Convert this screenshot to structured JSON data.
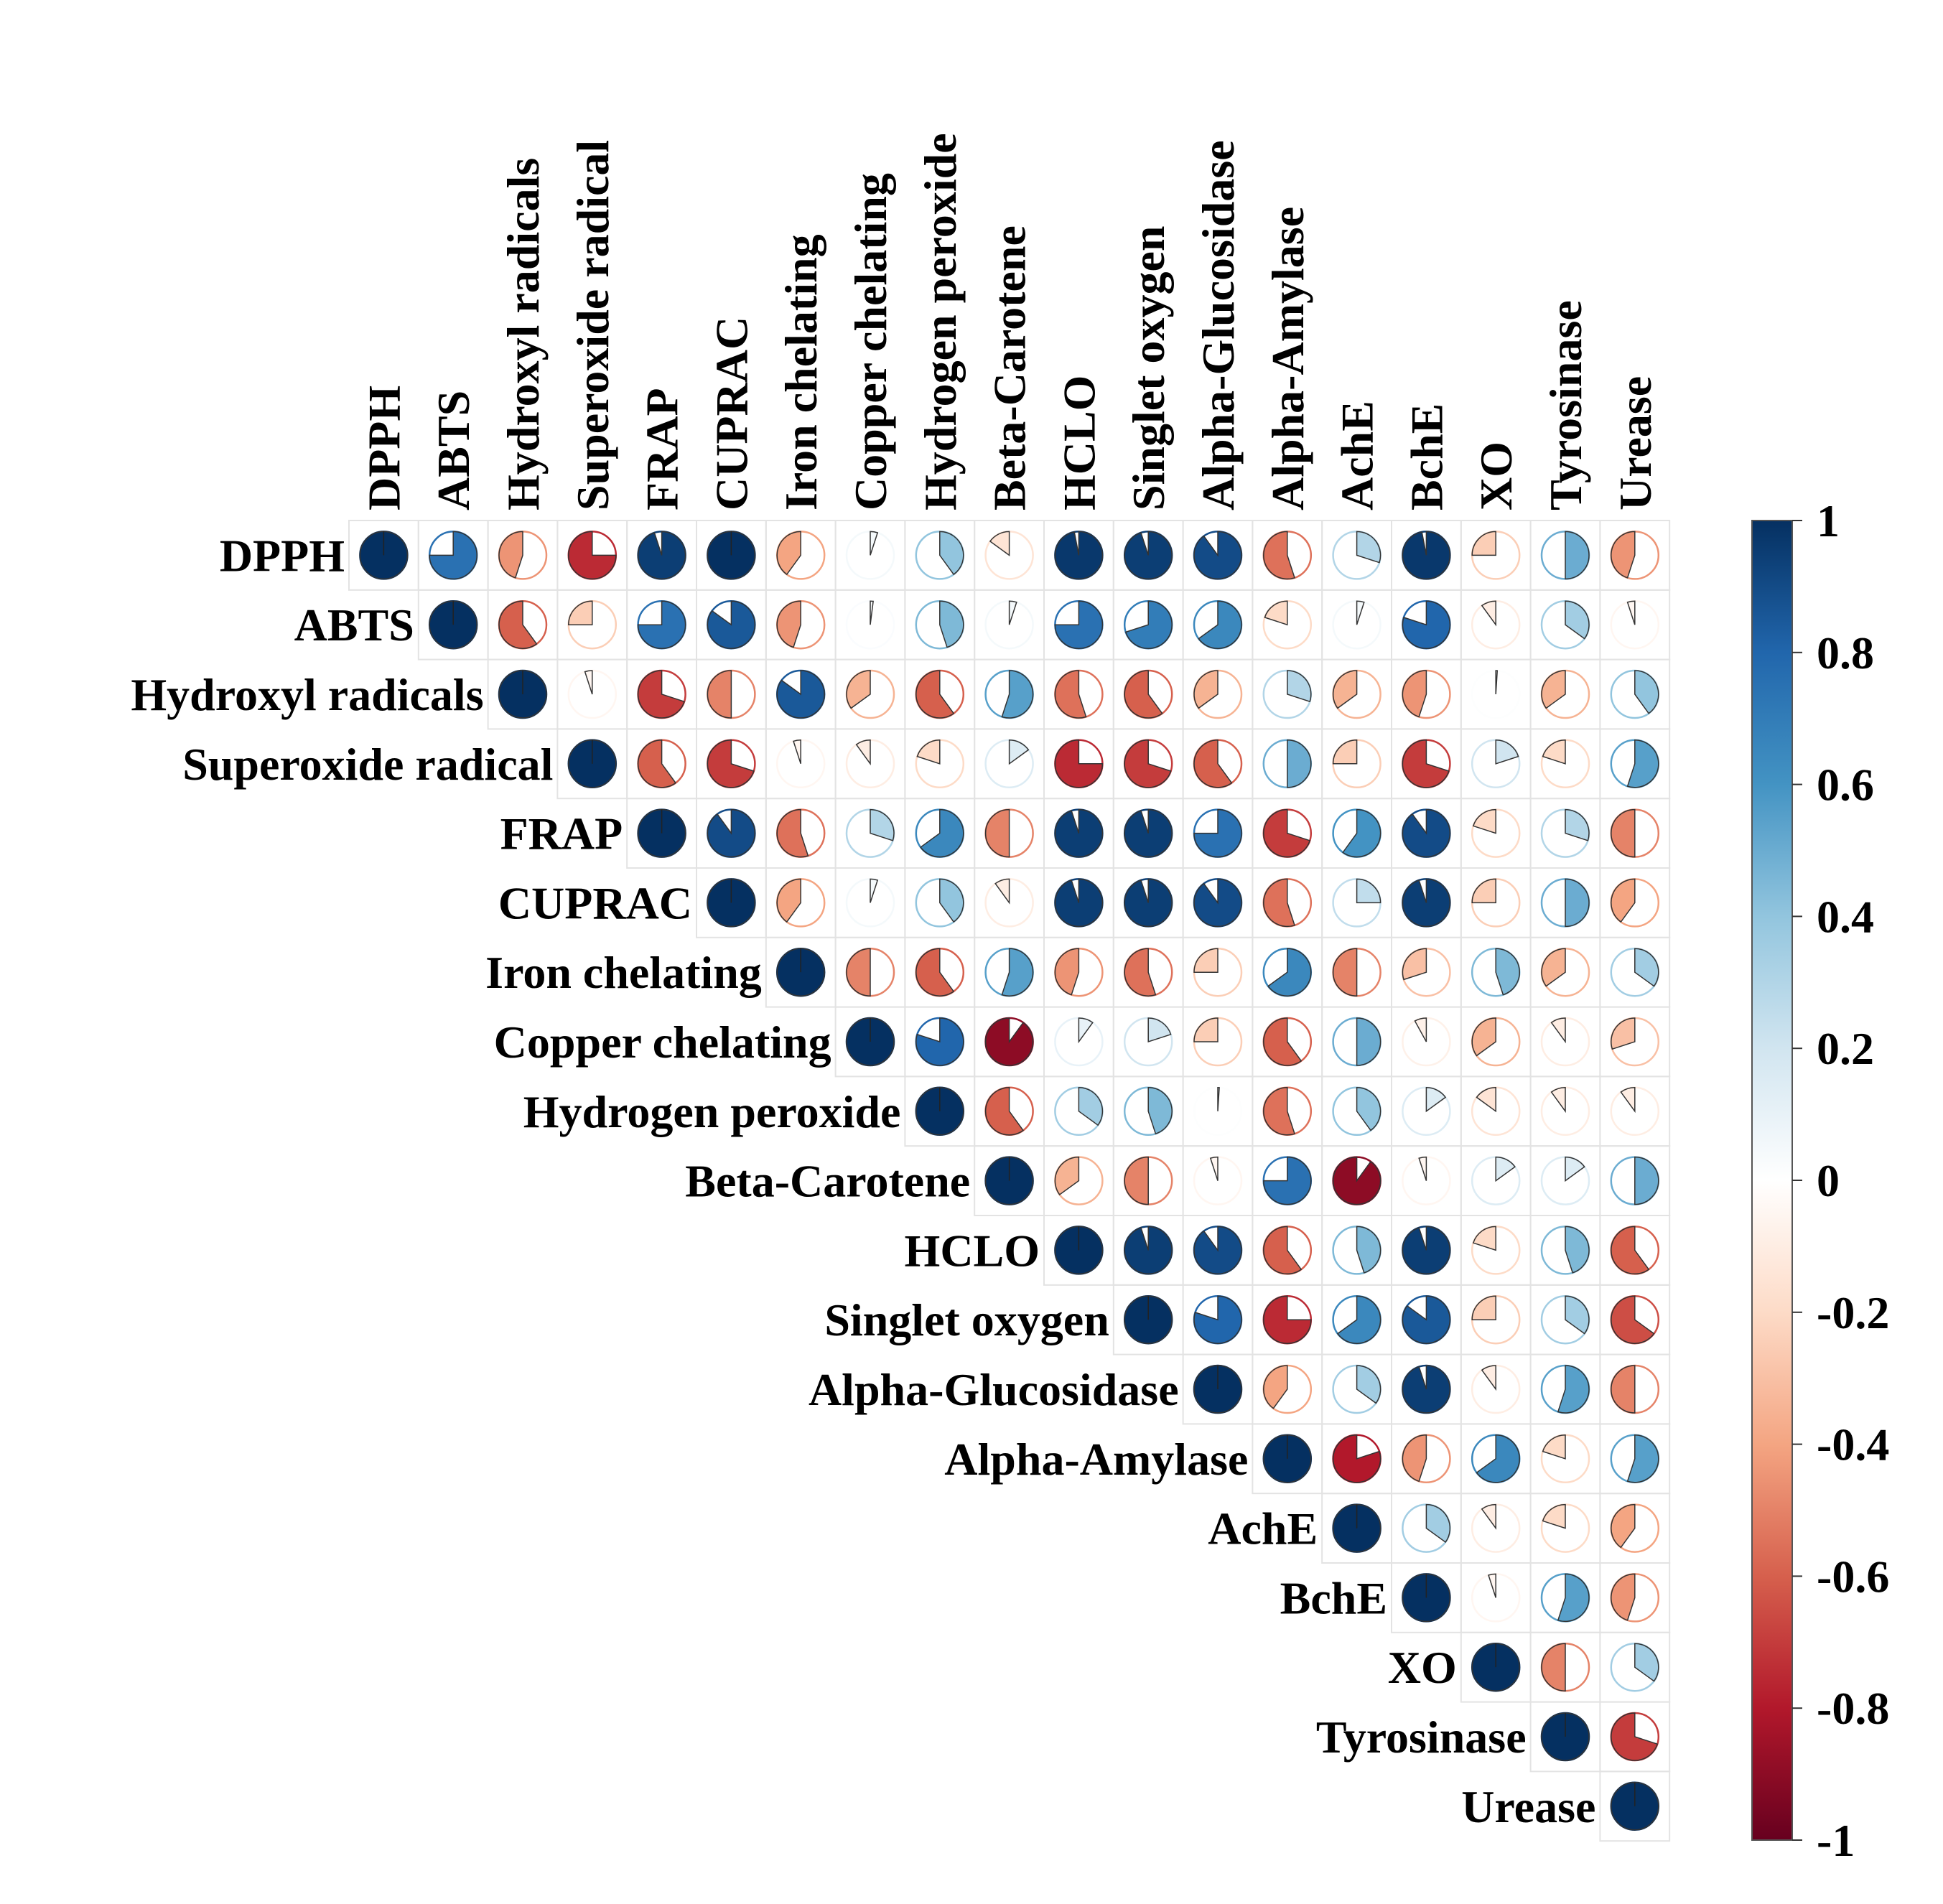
{
  "chart_data": {
    "type": "heatmap",
    "style": "pie-correlation-matrix-upper-triangle",
    "variables": [
      "DPPH",
      "ABTS",
      "Hydroxyl radicals",
      "Superoxide radical",
      "FRAP",
      "CUPRAC",
      "Iron chelating",
      "Copper chelating",
      "Hydrogen peroxide",
      "Beta-Carotene",
      "HCLO",
      "Singlet oxygen",
      "Alpha-Glucosidase",
      "Alpha-Amylase",
      "AchE",
      "BchE",
      "XO",
      "Tyrosinase",
      "Urease"
    ],
    "matrix": [
      [
        1.0,
        0.75,
        -0.45,
        -0.75,
        0.95,
        1.0,
        -0.4,
        0.05,
        0.4,
        -0.15,
        0.97,
        0.95,
        0.9,
        -0.55,
        0.3,
        0.97,
        -0.25,
        0.5,
        -0.45
      ],
      [
        null,
        1.0,
        -0.6,
        -0.25,
        0.75,
        0.85,
        -0.45,
        0.02,
        0.45,
        0.05,
        0.75,
        0.7,
        0.65,
        -0.2,
        0.05,
        0.8,
        -0.1,
        0.35,
        -0.05
      ],
      [
        null,
        null,
        1.0,
        -0.05,
        -0.7,
        -0.5,
        0.85,
        -0.35,
        -0.6,
        0.55,
        -0.55,
        -0.6,
        -0.35,
        0.3,
        -0.35,
        -0.45,
        0.01,
        -0.35,
        0.4
      ],
      [
        null,
        null,
        null,
        1.0,
        -0.6,
        -0.7,
        -0.05,
        -0.1,
        -0.2,
        0.15,
        -0.75,
        -0.7,
        -0.6,
        0.5,
        -0.25,
        -0.7,
        0.2,
        -0.2,
        0.55
      ],
      [
        null,
        null,
        null,
        null,
        1.0,
        0.9,
        -0.55,
        0.3,
        0.65,
        -0.5,
        0.95,
        0.95,
        0.75,
        -0.7,
        0.6,
        0.9,
        -0.2,
        0.3,
        -0.5
      ],
      [
        null,
        null,
        null,
        null,
        null,
        1.0,
        -0.4,
        0.05,
        0.4,
        -0.1,
        0.95,
        0.95,
        0.9,
        -0.55,
        0.25,
        0.95,
        -0.25,
        0.5,
        -0.4
      ],
      [
        null,
        null,
        null,
        null,
        null,
        null,
        1.0,
        -0.5,
        -0.6,
        0.55,
        -0.45,
        -0.55,
        -0.25,
        0.65,
        -0.5,
        -0.3,
        0.45,
        -0.35,
        0.35
      ],
      [
        null,
        null,
        null,
        null,
        null,
        null,
        null,
        1.0,
        0.8,
        -0.9,
        0.1,
        0.2,
        -0.25,
        -0.6,
        0.5,
        -0.08,
        -0.35,
        -0.1,
        -0.3
      ],
      [
        null,
        null,
        null,
        null,
        null,
        null,
        null,
        null,
        1.0,
        -0.6,
        0.35,
        0.45,
        0.01,
        -0.55,
        0.4,
        0.15,
        -0.15,
        -0.1,
        -0.1
      ],
      [
        null,
        null,
        null,
        null,
        null,
        null,
        null,
        null,
        null,
        1.0,
        -0.35,
        -0.5,
        -0.05,
        0.75,
        -0.9,
        -0.05,
        0.15,
        0.15,
        0.5
      ],
      [
        null,
        null,
        null,
        null,
        null,
        null,
        null,
        null,
        null,
        null,
        1.0,
        0.95,
        0.9,
        -0.6,
        0.45,
        0.95,
        -0.2,
        0.45,
        -0.6
      ],
      [
        null,
        null,
        null,
        null,
        null,
        null,
        null,
        null,
        null,
        null,
        null,
        1.0,
        0.8,
        -0.75,
        0.65,
        0.85,
        -0.25,
        0.35,
        -0.65
      ],
      [
        null,
        null,
        null,
        null,
        null,
        null,
        null,
        null,
        null,
        null,
        null,
        null,
        1.0,
        -0.4,
        0.35,
        0.95,
        -0.1,
        0.55,
        -0.5
      ],
      [
        null,
        null,
        null,
        null,
        null,
        null,
        null,
        null,
        null,
        null,
        null,
        null,
        null,
        1.0,
        -0.8,
        -0.45,
        0.65,
        -0.2,
        0.55
      ],
      [
        null,
        null,
        null,
        null,
        null,
        null,
        null,
        null,
        null,
        null,
        null,
        null,
        null,
        null,
        1.0,
        0.35,
        -0.1,
        -0.2,
        -0.4
      ],
      [
        null,
        null,
        null,
        null,
        null,
        null,
        null,
        null,
        null,
        null,
        null,
        null,
        null,
        null,
        null,
        1.0,
        -0.05,
        0.55,
        -0.45
      ],
      [
        null,
        null,
        null,
        null,
        null,
        null,
        null,
        null,
        null,
        null,
        null,
        null,
        null,
        null,
        null,
        null,
        1.0,
        -0.5,
        0.35
      ],
      [
        null,
        null,
        null,
        null,
        null,
        null,
        null,
        null,
        null,
        null,
        null,
        null,
        null,
        null,
        null,
        null,
        null,
        1.0,
        -0.7
      ],
      [
        null,
        null,
        null,
        null,
        null,
        null,
        null,
        null,
        null,
        null,
        null,
        null,
        null,
        null,
        null,
        null,
        null,
        null,
        1.0
      ]
    ],
    "colorbar": {
      "ticks": [
        "1",
        "0.8",
        "0.6",
        "0.4",
        "0.2",
        "0",
        "-0.2",
        "-0.4",
        "-0.6",
        "-0.8",
        "-1"
      ],
      "range": [
        -1,
        1
      ]
    },
    "colors": {
      "neg_strong": "#67001F",
      "neg_mid": "#D6604D",
      "neg_light": "#FDDBC7",
      "zero": "#FFFFFF",
      "pos_light": "#D1E5F0",
      "pos_mid": "#4393C3",
      "pos_strong": "#053061",
      "grid": "#E3E3E3"
    }
  }
}
